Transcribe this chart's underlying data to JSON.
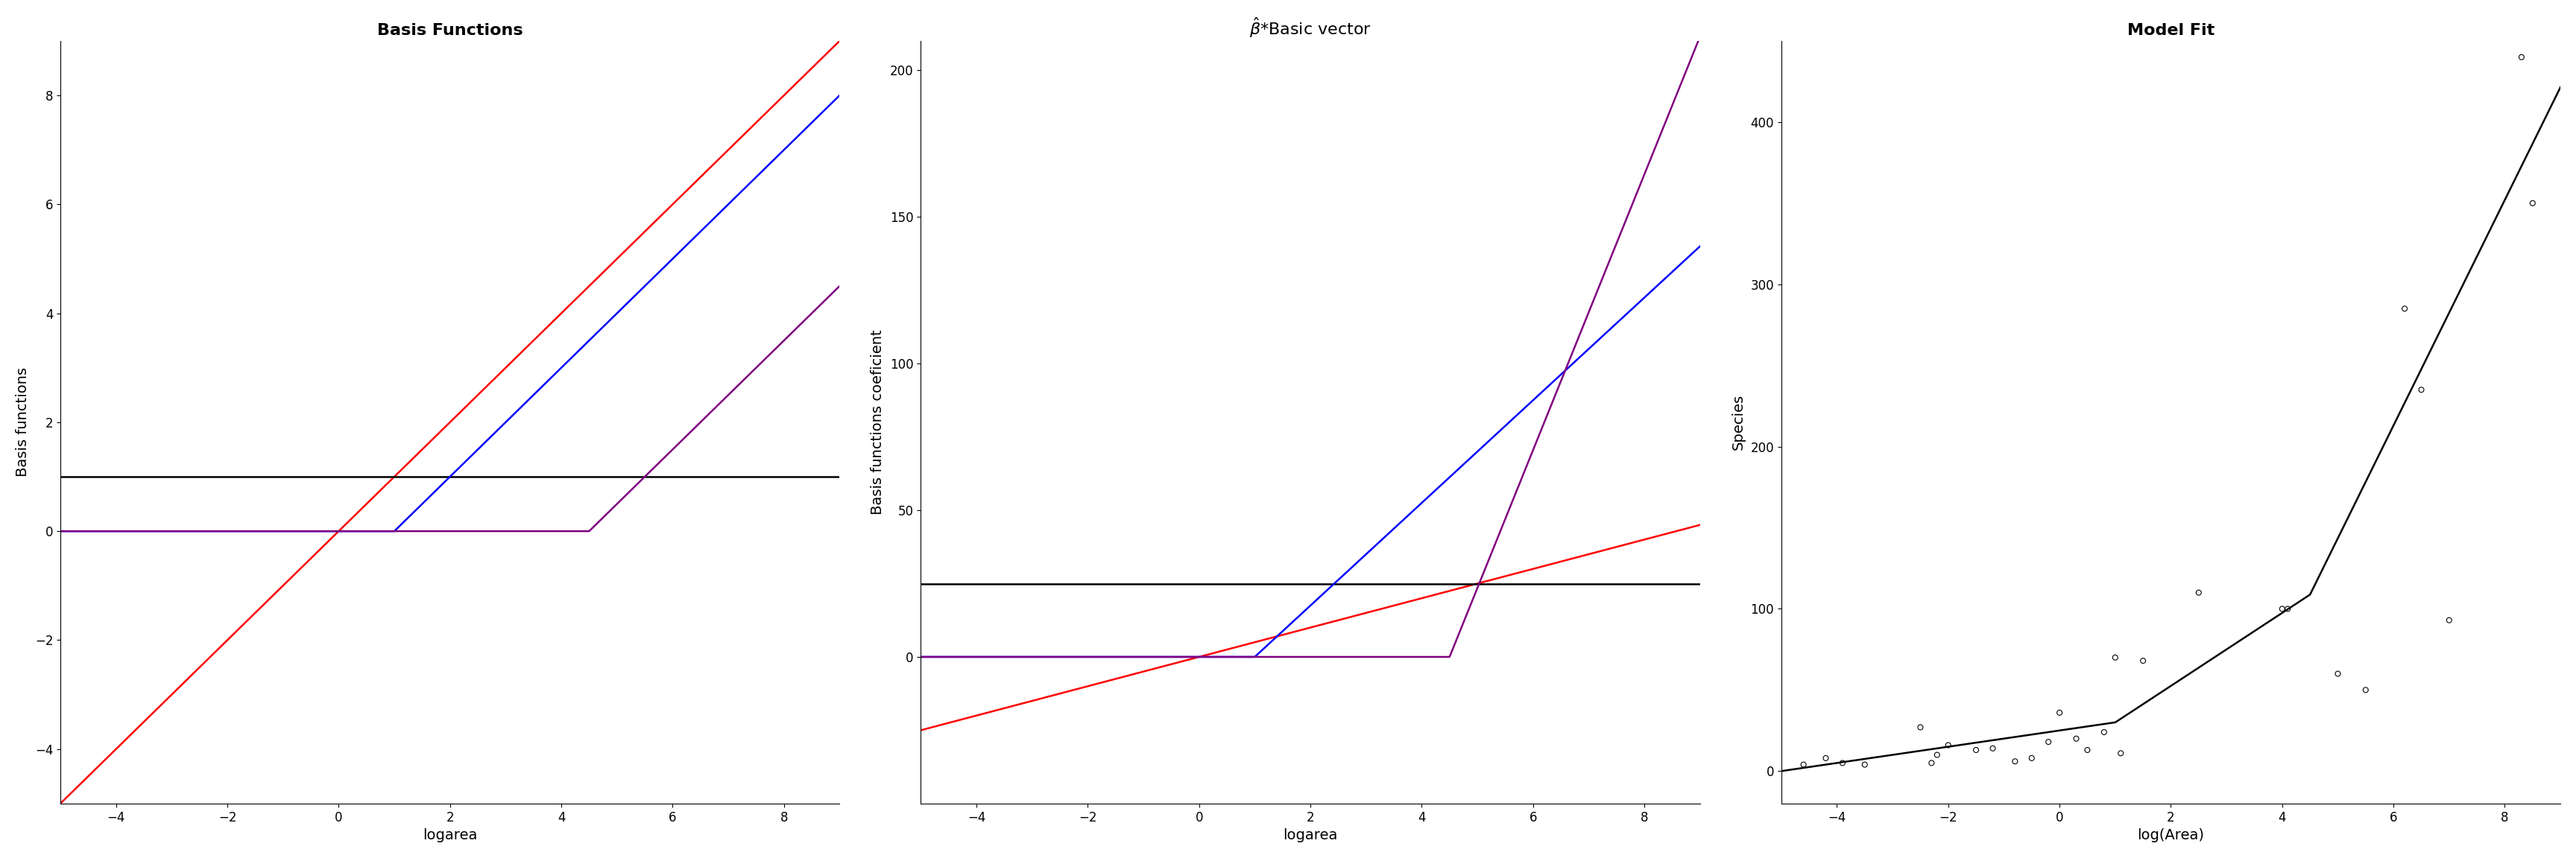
{
  "panel1": {
    "title": "Basis Functions",
    "xlabel": "logarea",
    "ylabel": "Basis functions",
    "xlim": [
      -5,
      9
    ],
    "ylim": [
      -5,
      9
    ],
    "yticks": [
      -4,
      -2,
      0,
      2,
      4,
      6,
      8
    ],
    "xticks": [
      -4,
      -2,
      0,
      2,
      4,
      6,
      8
    ],
    "black_hline": 1.0,
    "knot_blue": 1.0,
    "knot_purple": 4.5
  },
  "panel2": {
    "title": "$\\hat{\\beta}$*Basic vector",
    "xlabel": "logarea",
    "ylabel": "Basis functions coeficient",
    "xlim": [
      -5,
      9
    ],
    "ylim": [
      -50,
      210
    ],
    "yticks": [
      0,
      50,
      100,
      150,
      200
    ],
    "xticks": [
      -4,
      -2,
      0,
      2,
      4,
      6,
      8
    ],
    "beta_intercept": 25,
    "beta_red": 5,
    "beta_blue": 17.5,
    "beta_purple": 47,
    "knot_blue": 1.0,
    "knot_purple": 4.5
  },
  "panel3": {
    "title": "Model Fit",
    "xlabel": "log(Area)",
    "ylabel": "Species",
    "xlim": [
      -5,
      9
    ],
    "ylim": [
      -20,
      450
    ],
    "yticks": [
      0,
      100,
      200,
      300,
      400
    ],
    "xticks": [
      -4,
      -2,
      0,
      2,
      4,
      6,
      8
    ],
    "scatter_x": [
      -4.6,
      -4.2,
      -3.9,
      -3.5,
      -2.5,
      -2.3,
      -2.2,
      -2.0,
      -1.5,
      -1.2,
      -0.8,
      -0.5,
      -0.2,
      0.0,
      0.3,
      0.5,
      0.8,
      1.0,
      1.1,
      1.5,
      2.5,
      4.0,
      4.1,
      5.0,
      5.5,
      6.2,
      6.5,
      7.0,
      8.3,
      8.5
    ],
    "scatter_y": [
      4,
      8,
      5,
      4,
      27,
      5,
      10,
      16,
      13,
      14,
      6,
      8,
      18,
      36,
      20,
      13,
      24,
      70,
      11,
      68,
      110,
      100,
      100,
      60,
      50,
      285,
      235,
      93,
      440,
      350
    ]
  },
  "title_fontsize": 16,
  "label_fontsize": 14,
  "tick_fontsize": 12,
  "background_color": "#ffffff",
  "line_width": 1.8
}
